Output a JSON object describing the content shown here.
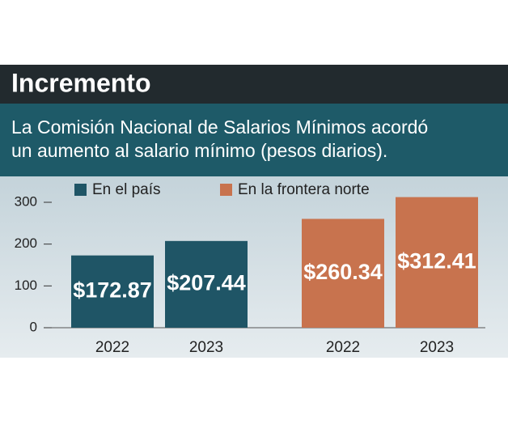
{
  "chart_data": {
    "type": "bar",
    "title": "Incremento",
    "subtitle": [
      "La Comisión Nacional de Salarios Mínimos acordó",
      "un aumento al salario mínimo (pesos diarios)."
    ],
    "categories": [
      "2022",
      "2023"
    ],
    "series": [
      {
        "name": "En el país",
        "color": "#1f5566",
        "values": [
          172.87,
          207.44
        ],
        "value_labels": [
          "$172.87",
          "$207.44"
        ]
      },
      {
        "name": "En la frontera norte",
        "color": "#c8734e",
        "values": [
          260.34,
          312.41
        ],
        "value_labels": [
          "$260.34",
          "$312.41"
        ]
      }
    ],
    "ylim": [
      0,
      300
    ],
    "yticks": [
      0,
      100,
      200,
      300
    ]
  }
}
